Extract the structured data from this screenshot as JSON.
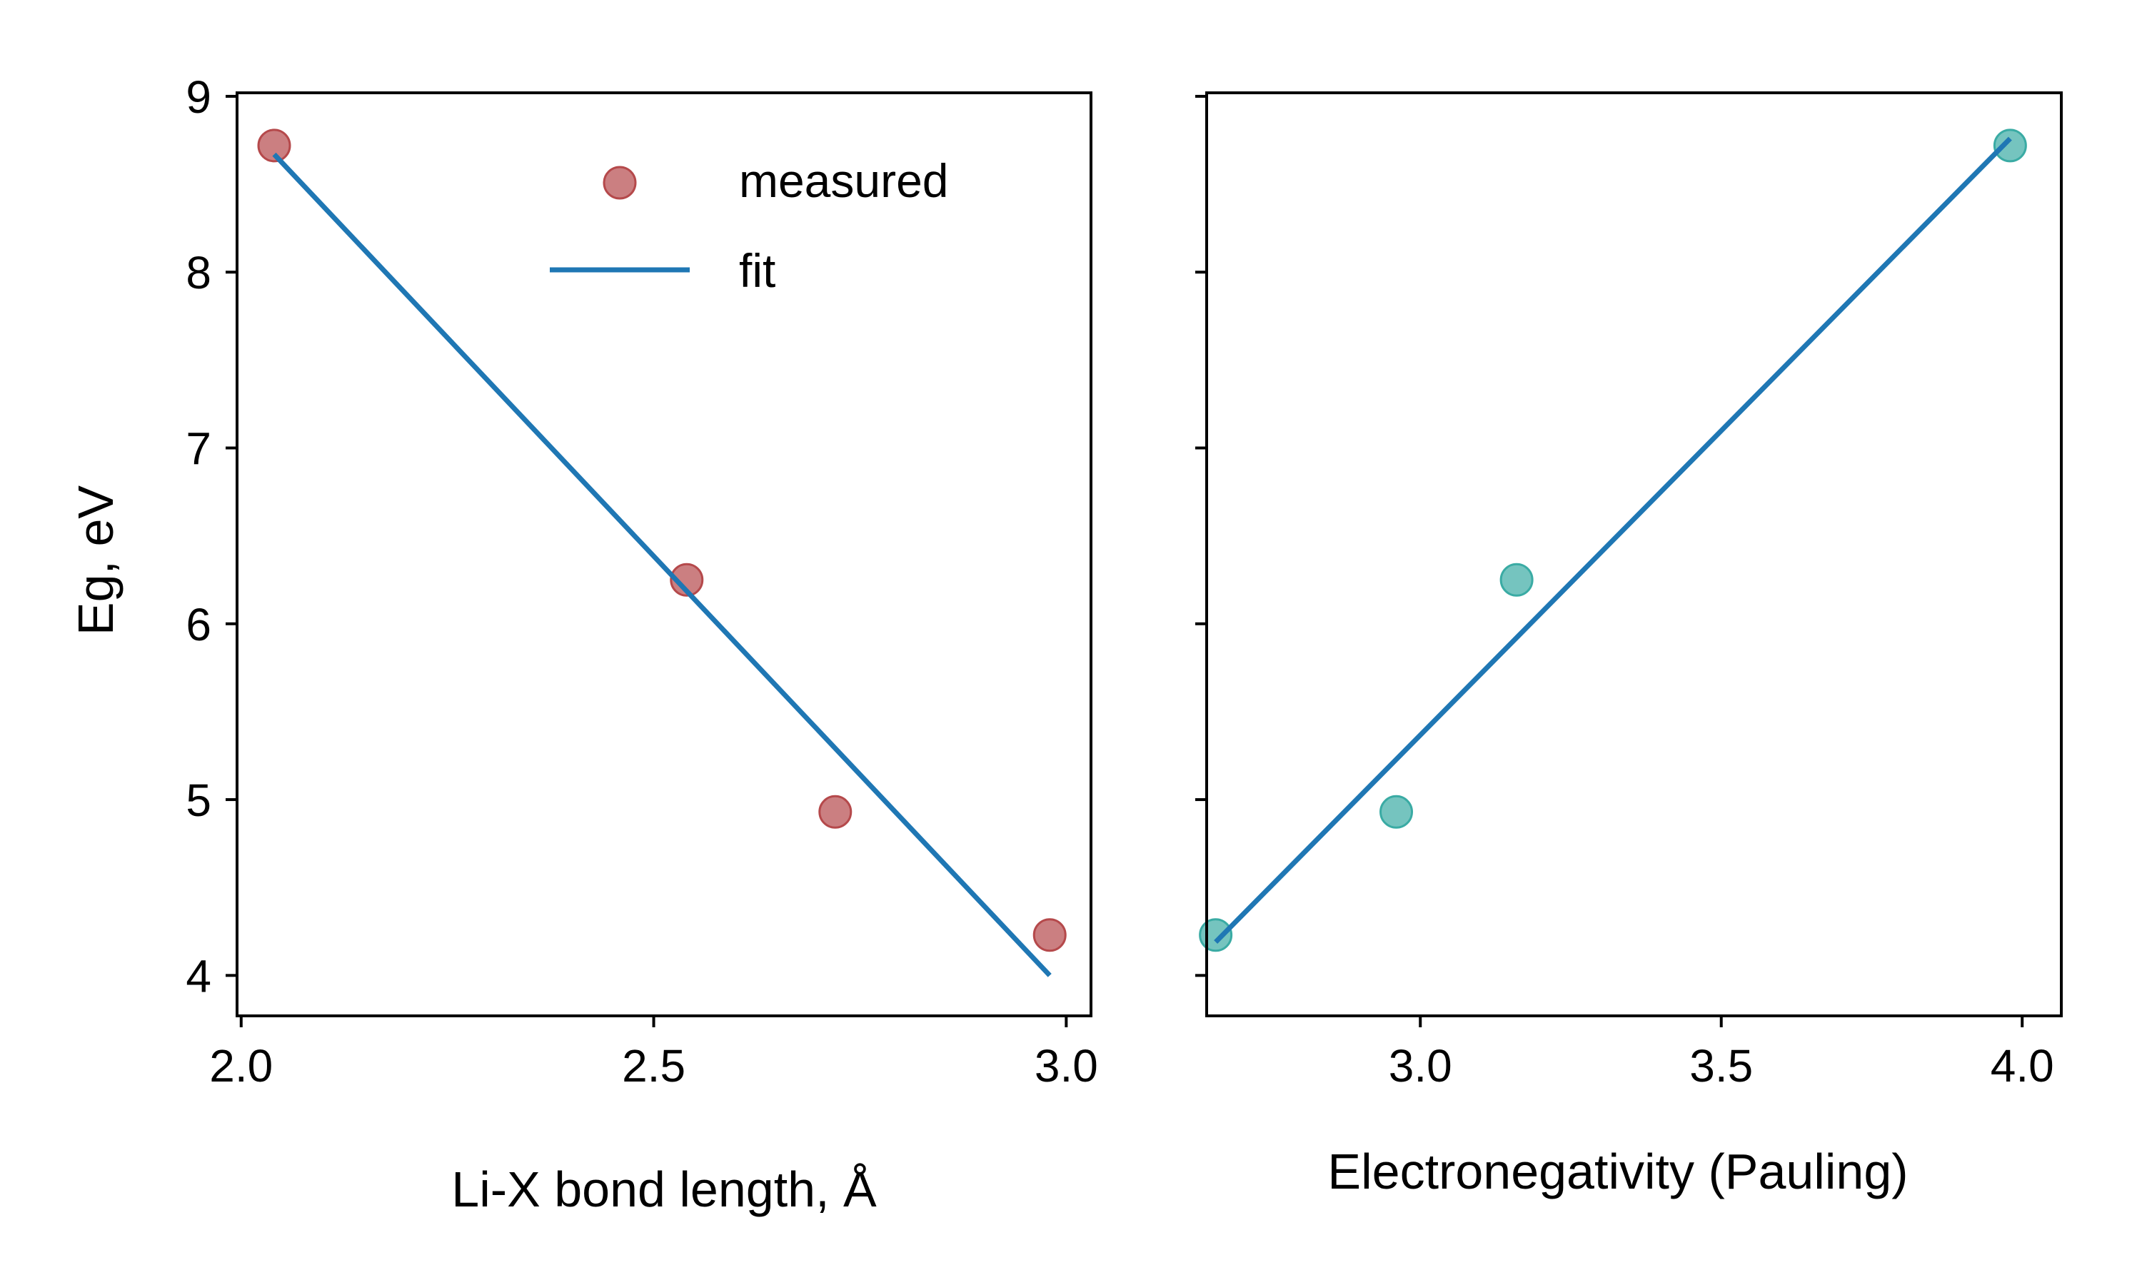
{
  "colors": {
    "measured_left": "#b5494b",
    "measured_right": "#3aaba4",
    "fit_line": "#1f77b4",
    "axes": "#000000"
  },
  "chart_data": [
    {
      "type": "scatter",
      "xlabel": "Li-X bond length, Å",
      "ylabel": "Eg, eV",
      "xlim": [
        1.995,
        3.03
      ],
      "ylim": [
        3.77,
        9.02
      ],
      "xticks": [
        2.0,
        2.5,
        3.0
      ],
      "xtick_labels": [
        "2.0",
        "2.5",
        "3.0"
      ],
      "yticks": [
        4,
        5,
        6,
        7,
        8,
        9
      ],
      "ytick_labels": [
        "4",
        "5",
        "6",
        "7",
        "8",
        "9"
      ],
      "grid": false,
      "legend": {
        "placement": "upper-right",
        "entries": [
          {
            "label": "measured",
            "kind": "marker"
          },
          {
            "label": "fit",
            "kind": "line"
          }
        ]
      },
      "series": [
        {
          "name": "measured",
          "kind": "scatter",
          "color": "#b5494b",
          "x": [
            2.04,
            2.54,
            2.72,
            2.98
          ],
          "y": [
            8.72,
            6.25,
            4.93,
            4.23
          ]
        },
        {
          "name": "fit",
          "kind": "line",
          "color": "#1f77b4",
          "x": [
            2.04,
            2.98
          ],
          "y": [
            8.67,
            4.0
          ]
        }
      ]
    },
    {
      "type": "scatter",
      "xlabel": "Electronegativity (Pauling)",
      "ylabel": "",
      "xlim": [
        2.645,
        4.065
      ],
      "ylim": [
        3.77,
        9.02
      ],
      "xticks": [
        3.0,
        3.5,
        4.0
      ],
      "xtick_labels": [
        "3.0",
        "3.5",
        "4.0"
      ],
      "yticks": [
        4,
        5,
        6,
        7,
        8,
        9
      ],
      "ytick_labels": [],
      "grid": false,
      "series": [
        {
          "name": "",
          "kind": "scatter",
          "color": "#3aaba4",
          "x": [
            2.66,
            2.96,
            3.16,
            3.98
          ],
          "y": [
            4.23,
            4.93,
            6.25,
            8.72
          ]
        },
        {
          "name": "",
          "kind": "line",
          "color": "#1f77b4",
          "x": [
            2.66,
            3.98
          ],
          "y": [
            4.19,
            8.76
          ]
        }
      ]
    }
  ]
}
